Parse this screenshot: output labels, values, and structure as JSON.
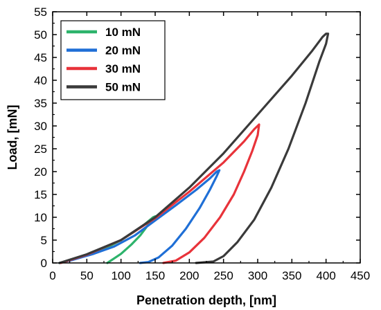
{
  "chart_data": {
    "type": "line",
    "title": "",
    "xlabel": "Penetration depth, [nm]",
    "ylabel": "Load, [mN]",
    "xlim": [
      0,
      450
    ],
    "ylim": [
      0,
      55
    ],
    "x_ticks": [
      0,
      50,
      100,
      150,
      200,
      250,
      300,
      350,
      400,
      450
    ],
    "y_ticks": [
      0,
      5,
      10,
      15,
      20,
      25,
      30,
      35,
      40,
      45,
      50,
      55
    ],
    "grid": false,
    "legend_position": "top-left",
    "series": [
      {
        "name": "10 mN",
        "color": "#2db36b",
        "points": [
          [
            10,
            0
          ],
          [
            20,
            0.4
          ],
          [
            40,
            1.2
          ],
          [
            60,
            2.2
          ],
          [
            80,
            3.4
          ],
          [
            100,
            5.0
          ],
          [
            120,
            6.9
          ],
          [
            135,
            8.5
          ],
          [
            147,
            10.0
          ],
          [
            150,
            10.2
          ],
          [
            145,
            9.4
          ],
          [
            138,
            8.0
          ],
          [
            128,
            6.0
          ],
          [
            115,
            4.0
          ],
          [
            100,
            2.0
          ],
          [
            90,
            1.0
          ],
          [
            80,
            0
          ]
        ]
      },
      {
        "name": "20 mN",
        "color": "#1f6fd6",
        "points": [
          [
            10,
            0
          ],
          [
            30,
            0.7
          ],
          [
            60,
            2.0
          ],
          [
            90,
            3.6
          ],
          [
            120,
            6.0
          ],
          [
            150,
            9.3
          ],
          [
            180,
            12.6
          ],
          [
            210,
            16.0
          ],
          [
            230,
            18.5
          ],
          [
            240,
            20.0
          ],
          [
            244,
            20.3
          ],
          [
            240,
            19.0
          ],
          [
            230,
            16.0
          ],
          [
            215,
            12.0
          ],
          [
            195,
            7.5
          ],
          [
            175,
            3.8
          ],
          [
            155,
            1.2
          ],
          [
            140,
            0.2
          ],
          [
            128,
            0
          ]
        ]
      },
      {
        "name": "30 mN",
        "color": "#e8333a",
        "points": [
          [
            12,
            0
          ],
          [
            50,
            1.8
          ],
          [
            100,
            5.0
          ],
          [
            150,
            9.8
          ],
          [
            200,
            15.6
          ],
          [
            250,
            22.0
          ],
          [
            280,
            26.6
          ],
          [
            295,
            29.3
          ],
          [
            302,
            30.3
          ],
          [
            300,
            28.0
          ],
          [
            292,
            24.5
          ],
          [
            280,
            20.0
          ],
          [
            265,
            15.0
          ],
          [
            245,
            10.0
          ],
          [
            222,
            5.5
          ],
          [
            200,
            2.3
          ],
          [
            180,
            0.5
          ],
          [
            162,
            0
          ]
        ]
      },
      {
        "name": "50 mN",
        "color": "#3a3a3a",
        "points": [
          [
            10,
            0
          ],
          [
            50,
            1.9
          ],
          [
            100,
            5.0
          ],
          [
            150,
            10.0
          ],
          [
            200,
            16.5
          ],
          [
            250,
            24.0
          ],
          [
            300,
            32.5
          ],
          [
            350,
            41.0
          ],
          [
            380,
            46.5
          ],
          [
            395,
            49.5
          ],
          [
            400,
            50.2
          ],
          [
            403,
            50.2
          ],
          [
            400,
            48.0
          ],
          [
            390,
            44.0
          ],
          [
            370,
            35.0
          ],
          [
            345,
            25.0
          ],
          [
            320,
            16.5
          ],
          [
            295,
            9.5
          ],
          [
            270,
            4.5
          ],
          [
            250,
            1.5
          ],
          [
            235,
            0.3
          ],
          [
            210,
            0
          ]
        ]
      }
    ]
  }
}
